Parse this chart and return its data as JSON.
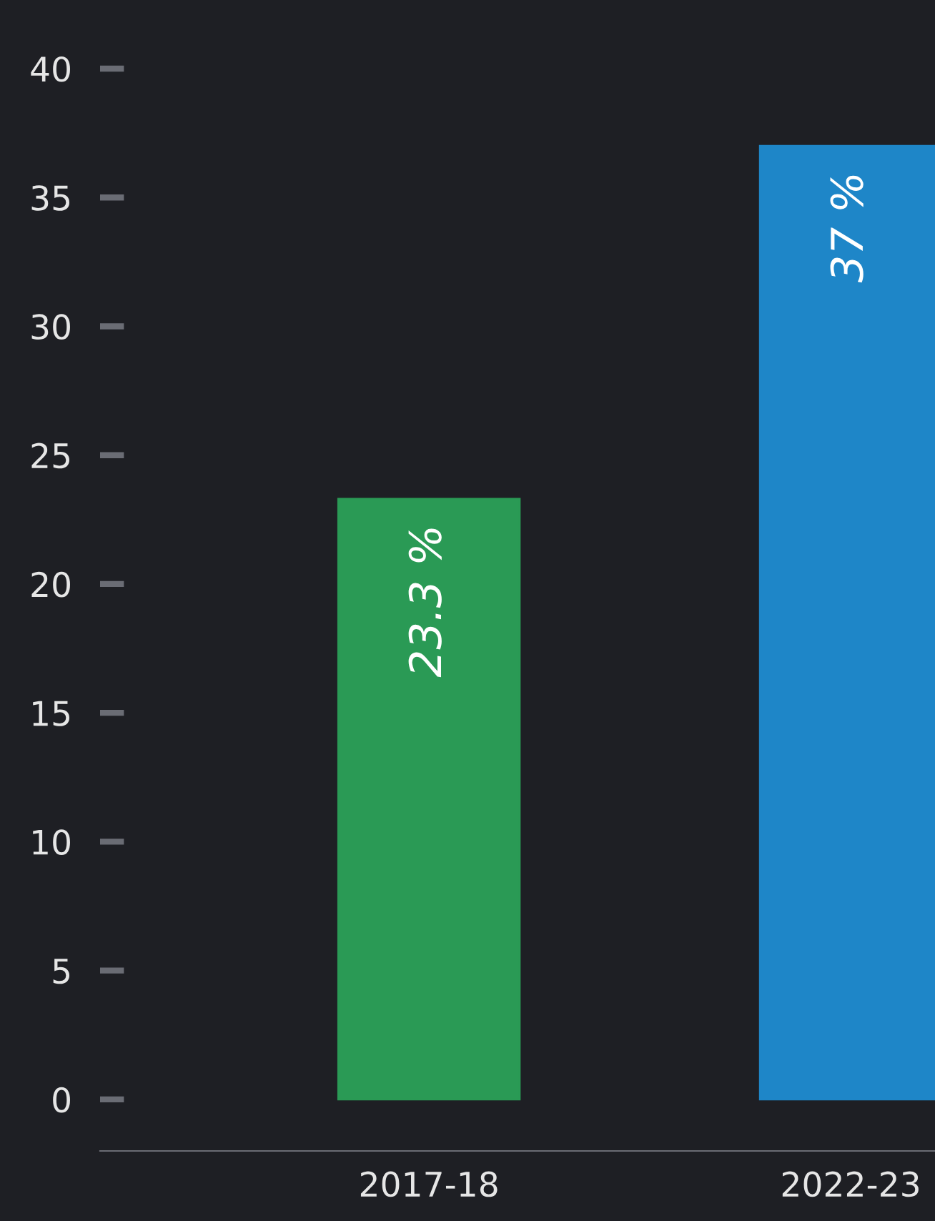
{
  "chart_data": {
    "type": "bar",
    "categories": [
      "2017-18",
      "2022-23"
    ],
    "values": [
      23.3,
      37
    ],
    "colors": [
      "#2a9a55",
      "#1e86c8"
    ],
    "value_labels": [
      "23.3 %",
      "37 %"
    ],
    "ylim": [
      -2,
      40
    ],
    "yticks": [
      0,
      5,
      10,
      15,
      20,
      25,
      30,
      35,
      40
    ],
    "grid": false,
    "legend": false
  }
}
